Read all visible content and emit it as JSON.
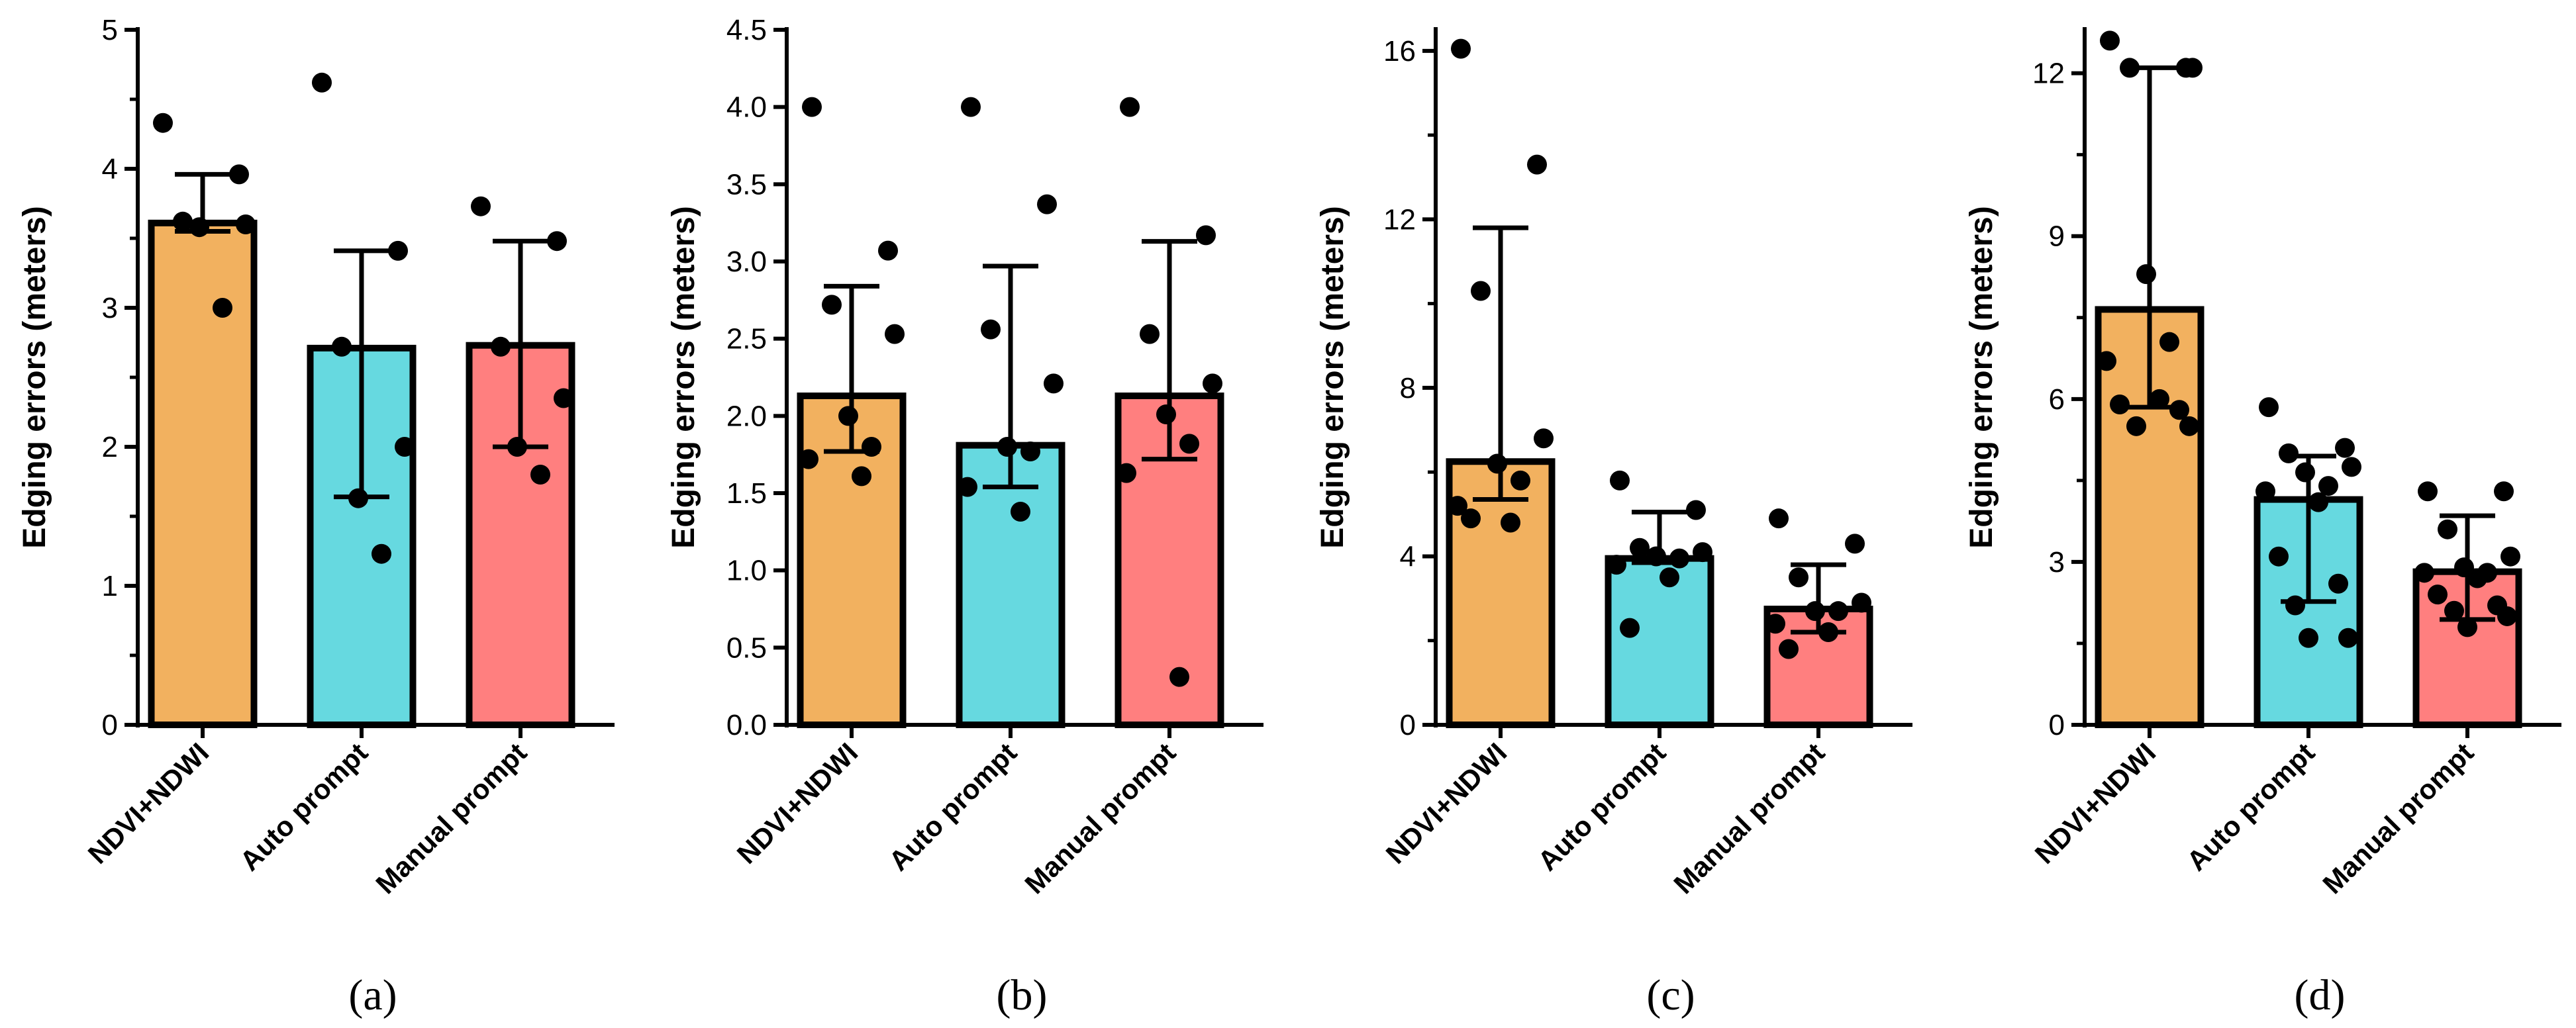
{
  "colors": {
    "ndvi": "#F2B15F",
    "auto": "#66D9E0",
    "manual": "#FF7F7F",
    "outline": "#000000"
  },
  "chart_data": [
    {
      "type": "bar",
      "panel_label": "(a)",
      "ylabel": "Edging errors (meters)",
      "categories": [
        "NDVI+NDWI",
        "Auto prompt",
        "Manual prompt"
      ],
      "ylim": [
        0,
        5
      ],
      "yticks": [
        0,
        1,
        2,
        3,
        4,
        5
      ],
      "minor_ticks": true,
      "values": [
        3.61,
        2.71,
        2.73
      ],
      "error_low": [
        3.55,
        1.64,
        2.0
      ],
      "error_high": [
        3.96,
        3.41,
        3.48
      ],
      "points": [
        [
          4.33,
          3.96,
          3.62,
          3.6,
          3.58,
          3.0
        ],
        [
          4.62,
          3.41,
          2.72,
          2.0,
          1.63,
          1.23
        ],
        [
          3.73,
          3.48,
          2.72,
          2.35,
          2.0,
          1.8
        ]
      ]
    },
    {
      "type": "bar",
      "panel_label": "(b)",
      "ylabel": "Edging errors (meters)",
      "categories": [
        "NDVI+NDWI",
        "Auto prompt",
        "Manual prompt"
      ],
      "ylim": [
        0,
        4.5
      ],
      "yticks": [
        "0.0",
        "0.5",
        "1.0",
        "1.5",
        "2.0",
        "2.5",
        "3.0",
        "3.5",
        "4.0",
        "4.5"
      ],
      "minor_ticks": false,
      "values": [
        2.13,
        1.81,
        2.13
      ],
      "error_low": [
        1.77,
        1.54,
        1.72
      ],
      "error_high": [
        2.84,
        2.97,
        3.13
      ],
      "points": [
        [
          4.0,
          3.07,
          2.72,
          2.53,
          2.0,
          1.8,
          1.72,
          1.61
        ],
        [
          4.0,
          3.37,
          2.56,
          2.21,
          1.8,
          1.77,
          1.54,
          1.38
        ],
        [
          4.0,
          3.17,
          2.53,
          2.21,
          2.01,
          1.82,
          1.63,
          0.31
        ]
      ]
    },
    {
      "type": "bar",
      "panel_label": "(c)",
      "ylabel": "Edging errors (meters)",
      "categories": [
        "NDVI+NDWI",
        "Auto prompt",
        "Manual prompt"
      ],
      "ylim": [
        0,
        16.5
      ],
      "yticks": [
        0,
        4,
        8,
        12,
        16
      ],
      "minor_ticks": true,
      "values": [
        6.25,
        3.95,
        2.75
      ],
      "error_low": [
        5.35,
        3.85,
        2.2
      ],
      "error_high": [
        11.8,
        5.05,
        3.8
      ],
      "points": [
        [
          16.05,
          13.3,
          10.3,
          6.8,
          6.2,
          5.8,
          5.2,
          4.8,
          4.9
        ],
        [
          5.8,
          5.1,
          4.2,
          4.1,
          4.0,
          3.95,
          3.8,
          3.5,
          2.3
        ],
        [
          4.9,
          4.3,
          3.5,
          2.9,
          2.7,
          2.7,
          2.4,
          2.2,
          1.8
        ]
      ]
    },
    {
      "type": "bar",
      "panel_label": "(d)",
      "ylabel": "Edging errors (meters)",
      "categories": [
        "NDVI+NDWI",
        "Auto prompt",
        "Manual prompt"
      ],
      "ylim": [
        0,
        12.8
      ],
      "yticks": [
        0,
        3,
        6,
        9,
        12
      ],
      "minor_ticks": true,
      "values": [
        7.65,
        4.15,
        2.82
      ],
      "error_low": [
        5.85,
        2.27,
        1.94
      ],
      "error_high": [
        12.1,
        4.95,
        3.85
      ],
      "points": [
        [
          12.6,
          12.1,
          12.1,
          12.1,
          8.3,
          7.05,
          6.7,
          6.0,
          5.9,
          5.8,
          5.5,
          5.5
        ],
        [
          5.85,
          5.1,
          5.0,
          4.75,
          4.65,
          4.4,
          4.3,
          4.1,
          3.1,
          2.6,
          2.2,
          1.6,
          1.6
        ],
        [
          4.3,
          4.3,
          3.6,
          3.1,
          2.9,
          2.8,
          2.8,
          2.7,
          2.4,
          2.2,
          2.1,
          2.0,
          1.8
        ]
      ]
    }
  ]
}
